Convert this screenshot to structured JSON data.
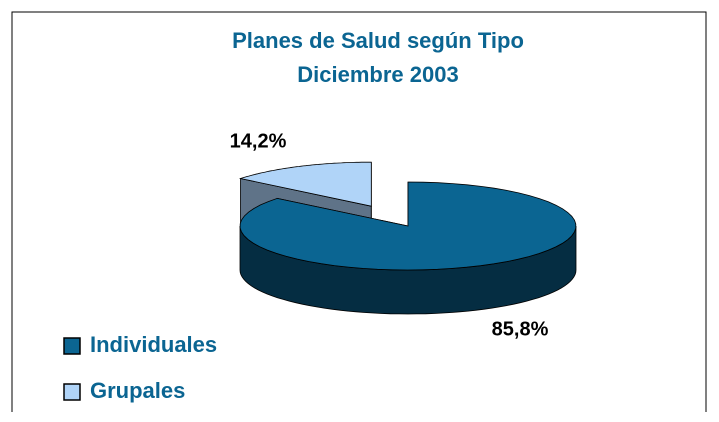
{
  "chart_data": {
    "type": "pie",
    "title": "Planes de Salud según Tipo",
    "subtitle": "Diciembre 2003",
    "categories": [
      "Individuales",
      "Grupales"
    ],
    "values": [
      85.8,
      14.2
    ],
    "value_labels": [
      "85,8%",
      "14,2%"
    ],
    "colors": [
      "#0b6592",
      "#b0d4f8"
    ],
    "legend": "bottom-left"
  }
}
